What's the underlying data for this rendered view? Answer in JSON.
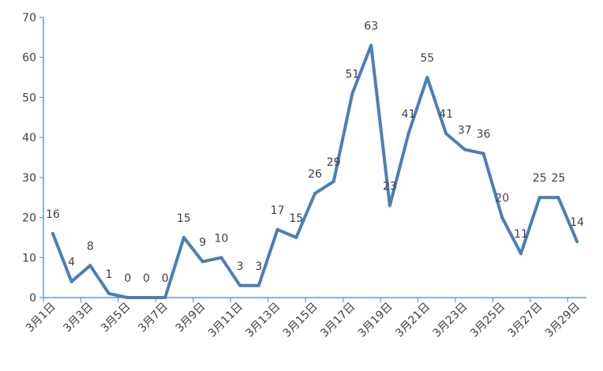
{
  "chart_data": {
    "type": "line",
    "title": "",
    "xlabel": "",
    "ylabel": "",
    "ylim": [
      0,
      70
    ],
    "yticks": [
      0,
      10,
      20,
      30,
      40,
      50,
      60,
      70
    ],
    "grid": false,
    "legend": "none",
    "line_color": "#4a7ebb",
    "categories": [
      "3月1日",
      "3月2日",
      "3月3日",
      "3月4日",
      "3月5日",
      "3月6日",
      "3月7日",
      "3月8日",
      "3月9日",
      "3月10日",
      "3月11日",
      "3月12日",
      "3月13日",
      "3月14日",
      "3月15日",
      "3月16日",
      "3月17日",
      "3月18日",
      "3月19日",
      "3月20日",
      "3月21日",
      "3月22日",
      "3月23日",
      "3月24日",
      "3月25日",
      "3月26日",
      "3月27日",
      "3月28日",
      "3月29日"
    ],
    "x_tick_labels": [
      "3月1日",
      "3月3日",
      "3月5日",
      "3月7日",
      "3月9日",
      "3月11日",
      "3月13日",
      "3月15日",
      "3月17日",
      "3月19日",
      "3月21日",
      "3月23日",
      "3月25日",
      "3月27日",
      "3月29日"
    ],
    "series": [
      {
        "values": [
          16,
          4,
          8,
          1,
          0,
          0,
          0,
          15,
          9,
          10,
          3,
          3,
          17,
          15,
          26,
          29,
          51,
          63,
          23,
          41,
          55,
          41,
          37,
          36,
          20,
          11,
          25,
          25,
          14
        ]
      }
    ]
  }
}
